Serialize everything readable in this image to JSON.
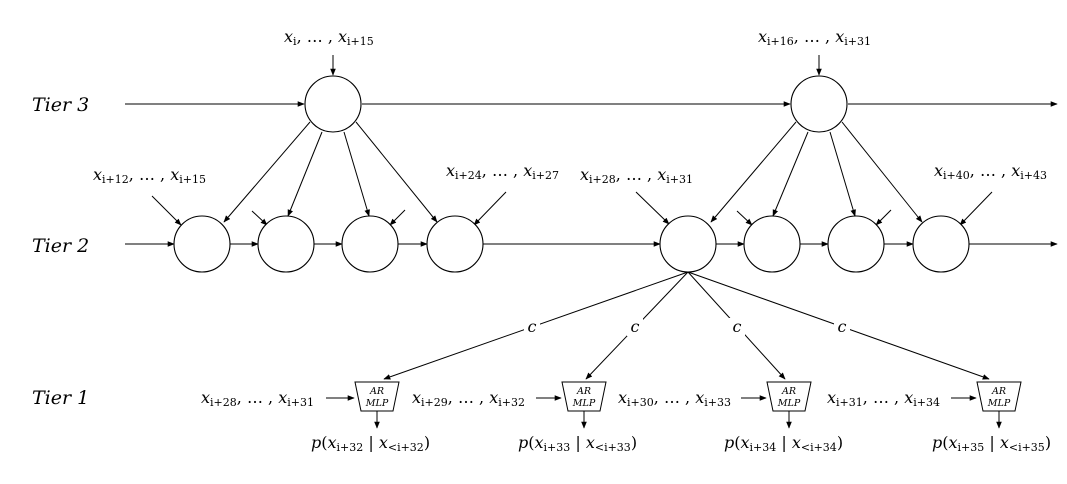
{
  "tiers": [
    "Tier 3",
    "Tier 2",
    "Tier 1"
  ],
  "tier3_inputs": [
    {
      "x": "x",
      "sub": "i",
      "y": "x",
      "sub2": "i+15"
    },
    {
      "x": "x",
      "sub": "i+16",
      "y": "x",
      "sub2": "i+31"
    }
  ],
  "tier2_inputs": [
    {
      "sub": "i+12",
      "sub2": "i+15"
    },
    {
      "sub": "i+24",
      "sub2": "i+27"
    },
    {
      "sub": "i+28",
      "sub2": "i+31"
    },
    {
      "sub": "i+40",
      "sub2": "i+43"
    }
  ],
  "edge_label": "c",
  "mlp_label": [
    "AR",
    "MLP"
  ],
  "tier1_inputs": [
    {
      "sub": "i+28",
      "sub2": "i+31"
    },
    {
      "sub": "i+29",
      "sub2": "i+32"
    },
    {
      "sub": "i+30",
      "sub2": "i+33"
    },
    {
      "sub": "i+31",
      "sub2": "i+34"
    }
  ],
  "outputs": [
    {
      "sub": "i+32",
      "cond": "<i+32"
    },
    {
      "sub": "i+33",
      "cond": "<i+33"
    },
    {
      "sub": "i+34",
      "cond": "<i+34"
    },
    {
      "sub": "i+35",
      "cond": "<i+35"
    }
  ]
}
